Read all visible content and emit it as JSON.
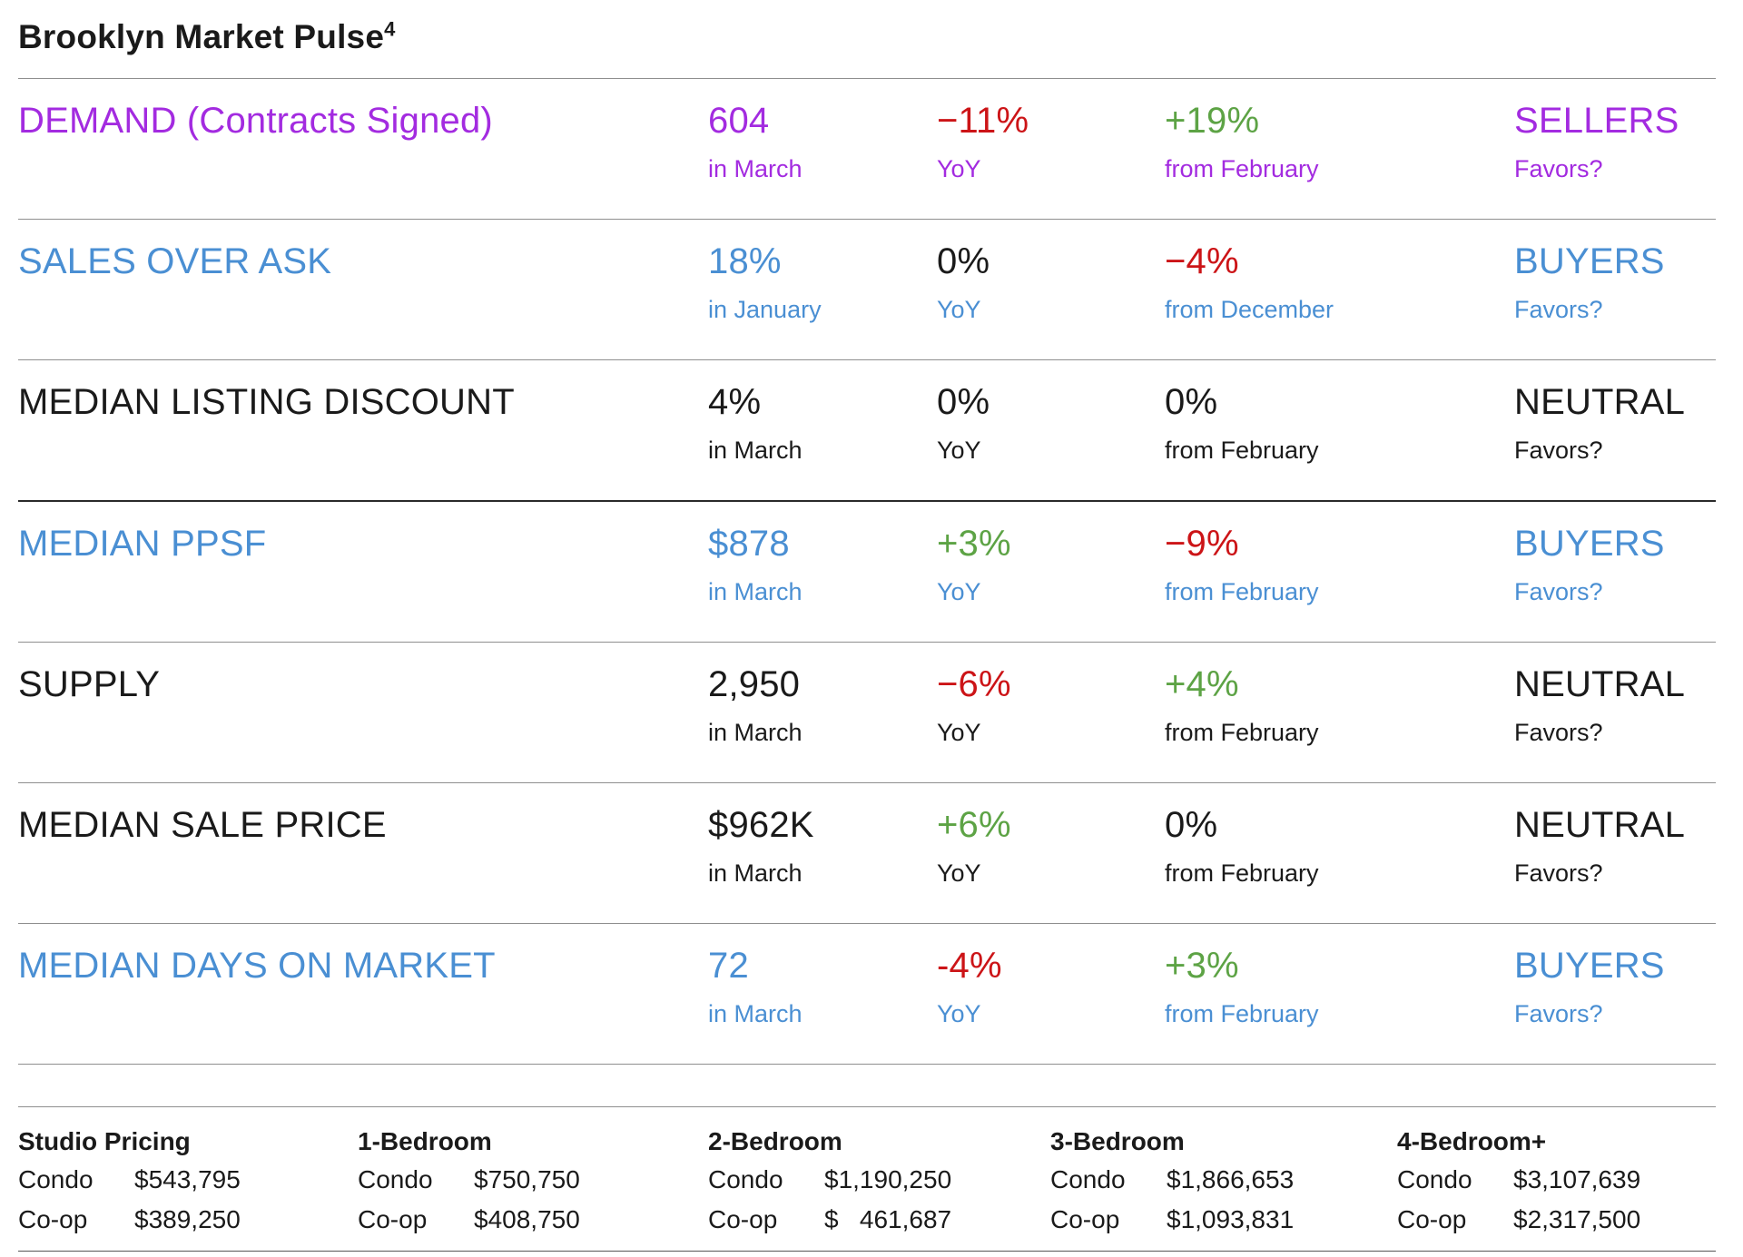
{
  "title": "Brooklyn Market Pulse",
  "title_superscript": "4",
  "colors": {
    "purple": "#A32BE0",
    "blue": "#4A8FD3",
    "red": "#CC1417",
    "green": "#5DA345",
    "black": "#1A1A1A"
  },
  "metrics": [
    {
      "name": "DEMAND (Contracts Signed)",
      "color": "purple",
      "value": "604",
      "value_sub": "in March",
      "yoy": "−11%",
      "yoy_color": "red",
      "yoy_sub": "YoY",
      "mom": "+19%",
      "mom_color": "green",
      "mom_sub": "from February",
      "favors": "SELLERS",
      "favors_sub": "Favors?"
    },
    {
      "name": "SALES OVER ASK",
      "color": "blue",
      "value": "18%",
      "value_sub": "in January",
      "yoy": "0%",
      "yoy_color": "black",
      "yoy_sub": "YoY",
      "mom": "−4%",
      "mom_color": "red",
      "mom_sub": "from December",
      "favors": "BUYERS",
      "favors_sub": "Favors?"
    },
    {
      "name": "MEDIAN LISTING DISCOUNT",
      "color": "black",
      "value": "4%",
      "value_sub": "in March",
      "yoy": "0%",
      "yoy_color": "black",
      "yoy_sub": "YoY",
      "mom": "0%",
      "mom_color": "black",
      "mom_sub": "from February",
      "favors": "NEUTRAL",
      "favors_sub": "Favors?"
    },
    {
      "name": "MEDIAN PPSF",
      "color": "blue",
      "value": "$878",
      "value_sub": "in March",
      "yoy": "+3%",
      "yoy_color": "green",
      "yoy_sub": "YoY",
      "mom": "−9%",
      "mom_color": "red",
      "mom_sub": "from February",
      "favors": "BUYERS",
      "favors_sub": "Favors?"
    },
    {
      "name": "SUPPLY",
      "color": "black",
      "value": "2,950",
      "value_sub": "in March",
      "yoy": "−6%",
      "yoy_color": "red",
      "yoy_sub": "YoY",
      "mom": "+4%",
      "mom_color": "green",
      "mom_sub": "from February",
      "favors": "NEUTRAL",
      "favors_sub": "Favors?"
    },
    {
      "name": "MEDIAN SALE PRICE",
      "color": "black",
      "value": "$962K",
      "value_sub": "in March",
      "yoy": "+6%",
      "yoy_color": "green",
      "yoy_sub": "YoY",
      "mom": "0%",
      "mom_color": "black",
      "mom_sub": "from February",
      "favors": "NEUTRAL",
      "favors_sub": "Favors?"
    },
    {
      "name": "MEDIAN DAYS ON MARKET",
      "color": "blue",
      "value": "72",
      "value_sub": "in March",
      "yoy": "-4%",
      "yoy_color": "red",
      "yoy_sub": "YoY",
      "mom": "+3%",
      "mom_color": "green",
      "mom_sub": "from February",
      "favors": "BUYERS",
      "favors_sub": "Favors?"
    }
  ],
  "pricing": {
    "condo_label": "Condo",
    "coop_label": "Co-op",
    "columns": [
      {
        "header": "Studio Pricing",
        "condo": "$543,795",
        "coop": "$389,250"
      },
      {
        "header": "1-Bedroom",
        "condo": "$750,750",
        "coop": "$408,750"
      },
      {
        "header": "2-Bedroom",
        "condo": "$1,190,250",
        "coop": "$   461,687"
      },
      {
        "header": "3-Bedroom",
        "condo": "$1,866,653",
        "coop": "$1,093,831"
      },
      {
        "header": "4-Bedroom+",
        "condo": "$3,107,639",
        "coop": "$2,317,500"
      }
    ]
  }
}
